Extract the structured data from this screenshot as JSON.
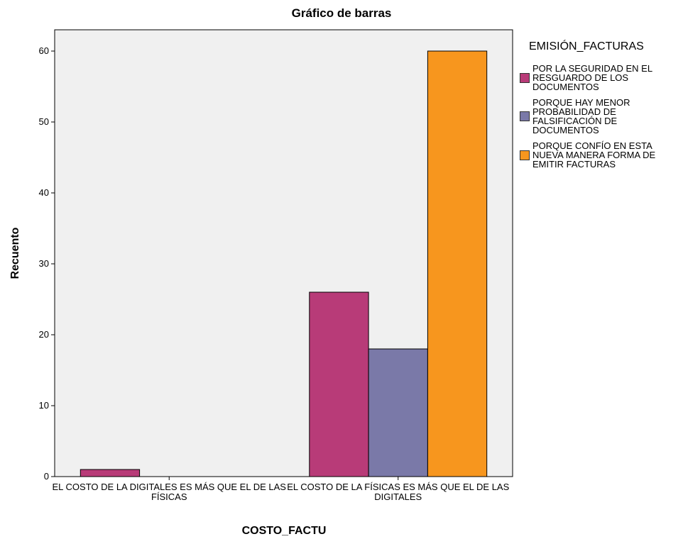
{
  "chart_data": {
    "type": "bar",
    "title": "Gráfico de barras",
    "x_label": "COSTO_FACTU",
    "y_label": "Recuento",
    "legend_title": "EMISIÓN_FACTURAS",
    "categories": [
      "EL COSTO DE LA DIGITALES ES MÁS QUE EL DE LAS FÍSICAS",
      "EL COSTO DE LA FÍSICAS ES MÁS QUE EL DE LAS DIGITALES"
    ],
    "series": [
      {
        "name": "POR LA SEGURIDAD EN EL RESGUARDO DE LOS DOCUMENTOS",
        "color": "#b83b78",
        "values": [
          1,
          26
        ]
      },
      {
        "name": "PORQUE HAY MENOR PROBABILIDAD DE FALSIFICACIÓN DE DOCUMENTOS",
        "color": "#7a79a8",
        "values": [
          0,
          18
        ]
      },
      {
        "name": "PORQUE CONFÍO EN ESTA NUEVA MANERA FORMA DE EMITIR FACTURAS",
        "color": "#f7961e",
        "values": [
          0,
          60
        ]
      }
    ],
    "ylim": [
      0,
      63
    ],
    "yticks": [
      0,
      10,
      20,
      30,
      40,
      50,
      60
    ],
    "legend": "right"
  }
}
